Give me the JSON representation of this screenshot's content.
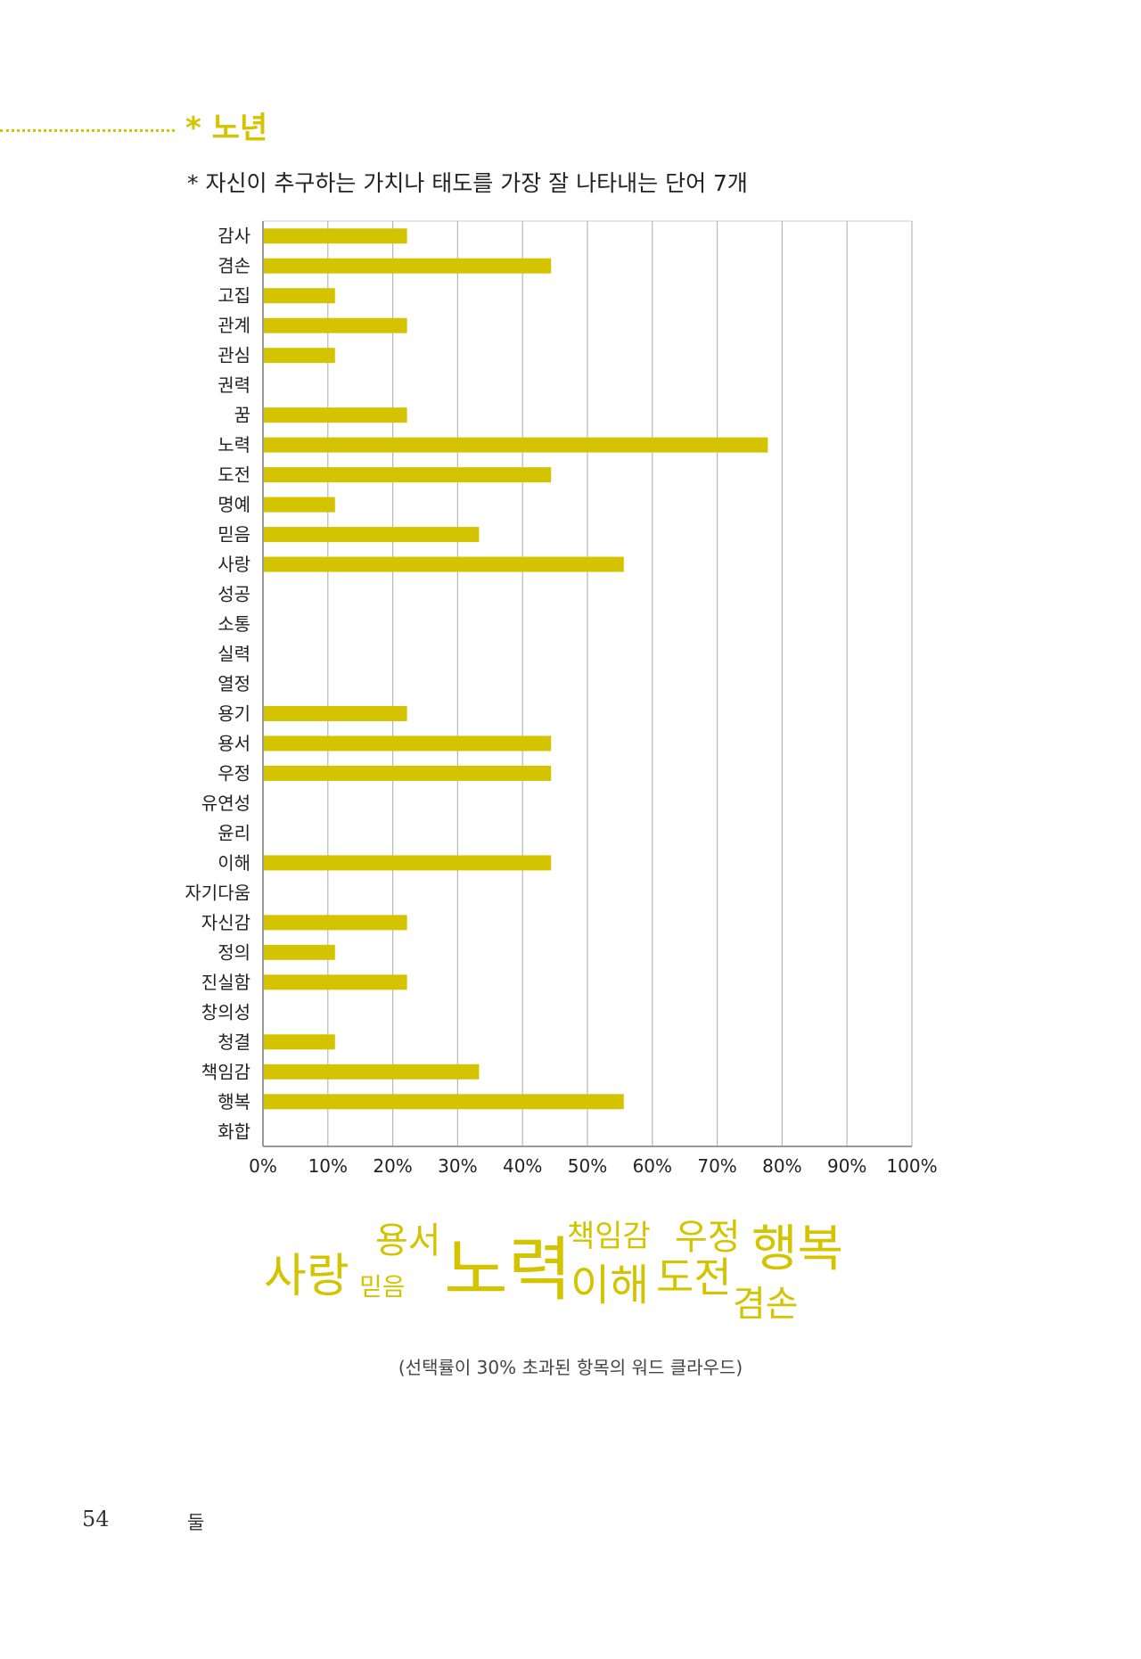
{
  "section": {
    "title": "* 노년",
    "subtitle": "* 자신이 추구하는 가치나 태도를 가장 잘 나타내는 단어 7개"
  },
  "chart_data": {
    "type": "bar",
    "orientation": "horizontal",
    "title": "",
    "xlabel": "",
    "ylabel": "",
    "xlim": [
      0,
      100
    ],
    "x_ticks": [
      "0%",
      "10%",
      "20%",
      "30%",
      "40%",
      "50%",
      "60%",
      "70%",
      "80%",
      "90%",
      "100%"
    ],
    "grid": "vertical",
    "bar_color": "#d4c400",
    "categories": [
      "감사",
      "겸손",
      "고집",
      "관계",
      "관심",
      "권력",
      "꿈",
      "노력",
      "도전",
      "명예",
      "믿음",
      "사랑",
      "성공",
      "소통",
      "실력",
      "열정",
      "용기",
      "용서",
      "우정",
      "유연성",
      "윤리",
      "이해",
      "자기다움",
      "자신감",
      "정의",
      "진실함",
      "창의성",
      "청결",
      "책임감",
      "행복",
      "화합"
    ],
    "values": [
      22.2,
      44.4,
      11.1,
      22.2,
      11.1,
      0,
      22.2,
      77.8,
      44.4,
      11.1,
      33.3,
      55.6,
      0,
      0,
      0,
      0,
      22.2,
      44.4,
      44.4,
      0,
      0,
      44.4,
      0,
      22.2,
      11.1,
      22.2,
      0,
      11.1,
      33.3,
      55.6,
      0
    ]
  },
  "word_cloud": {
    "words": [
      {
        "text": "사랑",
        "size": "large"
      },
      {
        "text": "용서",
        "size": "medium"
      },
      {
        "text": "믿음",
        "size": "small"
      },
      {
        "text": "노력",
        "size": "largest"
      },
      {
        "text": "책임감",
        "size": "medium"
      },
      {
        "text": "이해",
        "size": "large"
      },
      {
        "text": "우정",
        "size": "medium"
      },
      {
        "text": "도전",
        "size": "large"
      },
      {
        "text": "행복",
        "size": "large"
      },
      {
        "text": "겸손",
        "size": "medium"
      }
    ],
    "color": "#d4c400"
  },
  "caption": "(선택률이 30% 초과된 항목의 워드 클라우드)",
  "footer": {
    "page_number": "54",
    "section_label": "둘"
  }
}
